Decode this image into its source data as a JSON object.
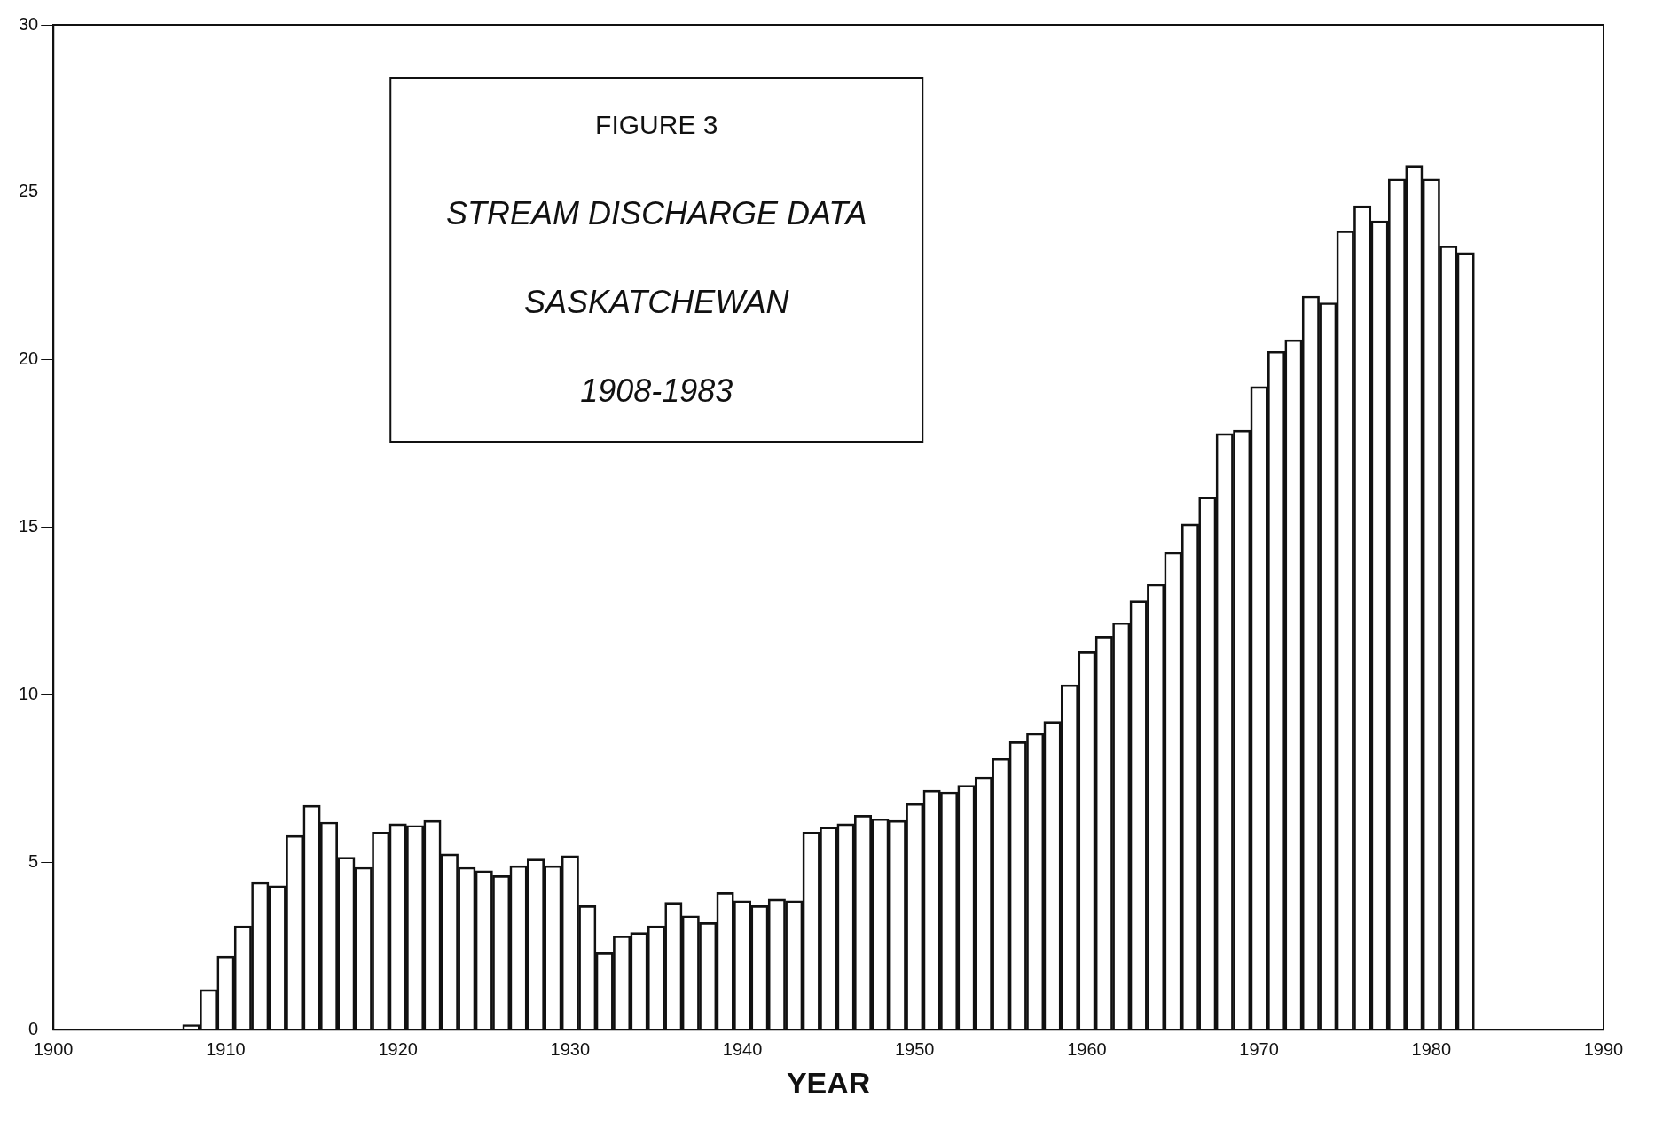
{
  "chart_data": {
    "type": "bar",
    "xlabel": "YEAR",
    "x": [
      1908,
      1909,
      1910,
      1911,
      1912,
      1913,
      1914,
      1915,
      1916,
      1917,
      1918,
      1919,
      1920,
      1921,
      1922,
      1923,
      1924,
      1925,
      1926,
      1927,
      1928,
      1929,
      1930,
      1931,
      1932,
      1933,
      1934,
      1935,
      1936,
      1937,
      1938,
      1939,
      1940,
      1941,
      1942,
      1943,
      1944,
      1945,
      1946,
      1947,
      1948,
      1949,
      1950,
      1951,
      1952,
      1953,
      1954,
      1955,
      1956,
      1957,
      1958,
      1959,
      1960,
      1961,
      1962,
      1963,
      1964,
      1965,
      1966,
      1967,
      1968,
      1969,
      1970,
      1971,
      1972,
      1973,
      1974,
      1975,
      1976,
      1977,
      1978,
      1979,
      1980,
      1981,
      1982
    ],
    "values": [
      0.15,
      1.2,
      2.2,
      3.1,
      4.4,
      4.3,
      5.8,
      6.7,
      6.2,
      5.15,
      4.85,
      5.9,
      6.15,
      6.1,
      6.25,
      5.25,
      4.85,
      4.75,
      4.6,
      4.9,
      5.1,
      4.9,
      5.2,
      3.7,
      2.3,
      2.8,
      2.9,
      3.1,
      3.8,
      3.4,
      3.2,
      4.1,
      3.85,
      3.7,
      3.9,
      3.85,
      5.9,
      6.05,
      6.15,
      6.4,
      6.3,
      6.25,
      6.75,
      7.15,
      7.1,
      7.3,
      7.55,
      8.1,
      8.6,
      8.85,
      9.2,
      10.3,
      11.3,
      11.75,
      12.15,
      12.8,
      13.3,
      14.25,
      15.1,
      15.9,
      17.8,
      17.9,
      19.2,
      20.25,
      20.6,
      21.9,
      21.7,
      23.85,
      24.6,
      24.15,
      25.4,
      25.8,
      25.4,
      23.4,
      23.2
    ],
    "color": "#111111",
    "xlim": [
      1900,
      1990
    ],
    "xticks": [
      1900,
      1910,
      1920,
      1930,
      1940,
      1950,
      1960,
      1970,
      1980,
      1990
    ],
    "ylim": [
      0,
      30
    ],
    "yticks": [
      0,
      5,
      10,
      15,
      20,
      25,
      30
    ],
    "grid": false,
    "legend": false,
    "annotations": [
      "FIGURE 3",
      "STREAM DISCHARGE DATA",
      "SASKATCHEWAN",
      "1908-1983"
    ]
  }
}
